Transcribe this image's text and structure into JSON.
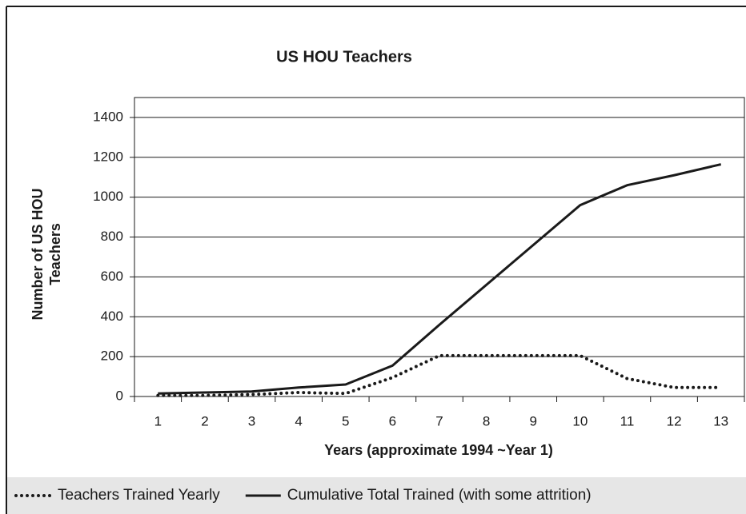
{
  "chart_data": {
    "type": "line",
    "title": "US HOU Teachers",
    "xlabel": "Years (approximate 1994 ~Year 1)",
    "ylabel": [
      "Number of US HOU",
      "Teachers"
    ],
    "categories": [
      "1",
      "2",
      "3",
      "4",
      "5",
      "6",
      "7",
      "8",
      "9",
      "10",
      "11",
      "12",
      "13"
    ],
    "series": [
      {
        "name": "Teachers Trained Yearly",
        "color": "#1a1a1a",
        "style": "dotted",
        "values": [
          5,
          5,
          10,
          20,
          15,
          95,
          205,
          205,
          205,
          205,
          90,
          45,
          45
        ]
      },
      {
        "name": "Cumulative Total Trained (with some attrition)",
        "color": "#1a1a1a",
        "style": "solid",
        "values": [
          15,
          20,
          25,
          45,
          60,
          155,
          360,
          560,
          760,
          960,
          1060,
          1110,
          1165
        ]
      }
    ],
    "ylim": [
      0,
      1500
    ],
    "yticks": [
      0,
      200,
      400,
      600,
      800,
      1000,
      1200,
      1400
    ],
    "grid": true,
    "legend": "bottom"
  }
}
